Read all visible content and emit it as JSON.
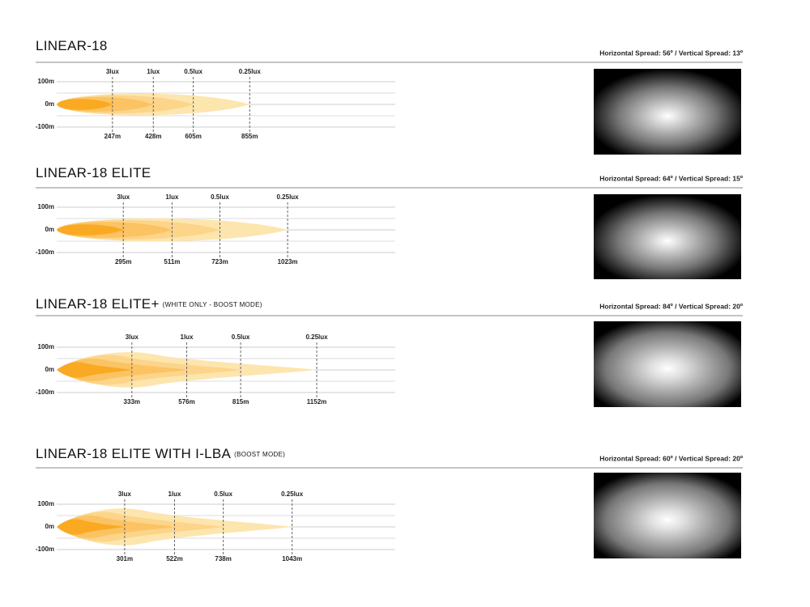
{
  "chart_data": [
    {
      "type": "beam",
      "title": "LINEAR-18",
      "spread": "Horizontal Spread: 56º  /  Vertical Spread: 13º",
      "lux_labels": [
        "3lux",
        "1lux",
        "0.5lux",
        "0.25lux"
      ],
      "xticks": [
        {
          "value": 247,
          "label": "247m"
        },
        {
          "value": 428,
          "label": "428m"
        },
        {
          "value": 605,
          "label": "605m"
        },
        {
          "value": 855,
          "label": "855m"
        }
      ],
      "yticks": [
        {
          "value": 100,
          "label": "100m"
        },
        {
          "value": 0,
          "label": "0m"
        },
        {
          "value": -100,
          "label": "-100m"
        }
      ],
      "xlim": [
        0,
        1500
      ],
      "ylim": [
        -100,
        100
      ]
    },
    {
      "type": "beam",
      "title": "LINEAR-18 ELITE",
      "spread": "Horizontal Spread: 64º  /  Vertical Spread: 15º",
      "lux_labels": [
        "3lux",
        "1lux",
        "0.5lux",
        "0.25lux"
      ],
      "xticks": [
        {
          "value": 295,
          "label": "295m"
        },
        {
          "value": 511,
          "label": "511m"
        },
        {
          "value": 723,
          "label": "723m"
        },
        {
          "value": 1023,
          "label": "1023m"
        }
      ],
      "yticks": [
        {
          "value": 100,
          "label": "100m"
        },
        {
          "value": 0,
          "label": "0m"
        },
        {
          "value": -100,
          "label": "-100m"
        }
      ],
      "xlim": [
        0,
        1500
      ],
      "ylim": [
        -100,
        100
      ]
    },
    {
      "type": "beam",
      "title": "LINEAR-18 ELITE+",
      "subtitle": "(WHITE ONLY - BOOST MODE)",
      "spread": "Horizontal Spread: 84º  /  Vertical Spread: 20º",
      "lux_labels": [
        "3lux",
        "1lux",
        "0.5lux",
        "0.25lux"
      ],
      "xticks": [
        {
          "value": 333,
          "label": "333m"
        },
        {
          "value": 576,
          "label": "576m"
        },
        {
          "value": 815,
          "label": "815m"
        },
        {
          "value": 1152,
          "label": "1152m"
        }
      ],
      "yticks": [
        {
          "value": 100,
          "label": "100m"
        },
        {
          "value": 0,
          "label": "0m"
        },
        {
          "value": -100,
          "label": "-100m"
        }
      ],
      "xlim": [
        0,
        1500
      ],
      "ylim": [
        -100,
        100
      ]
    },
    {
      "type": "beam",
      "title": "LINEAR-18 ELITE WITH I-LBA",
      "subtitle": "(BOOST MODE)",
      "spread": "Horizontal Spread: 60º  /  Vertical Spread: 20º",
      "lux_labels": [
        "3lux",
        "1lux",
        "0.5lux",
        "0.25lux"
      ],
      "xticks": [
        {
          "value": 301,
          "label": "301m"
        },
        {
          "value": 522,
          "label": "522m"
        },
        {
          "value": 738,
          "label": "738m"
        },
        {
          "value": 1043,
          "label": "1043m"
        }
      ],
      "yticks": [
        {
          "value": 100,
          "label": "100m"
        },
        {
          "value": 0,
          "label": "0m"
        },
        {
          "value": -100,
          "label": "-100m"
        }
      ],
      "xlim": [
        0,
        1500
      ],
      "ylim": [
        -100,
        100
      ]
    }
  ]
}
